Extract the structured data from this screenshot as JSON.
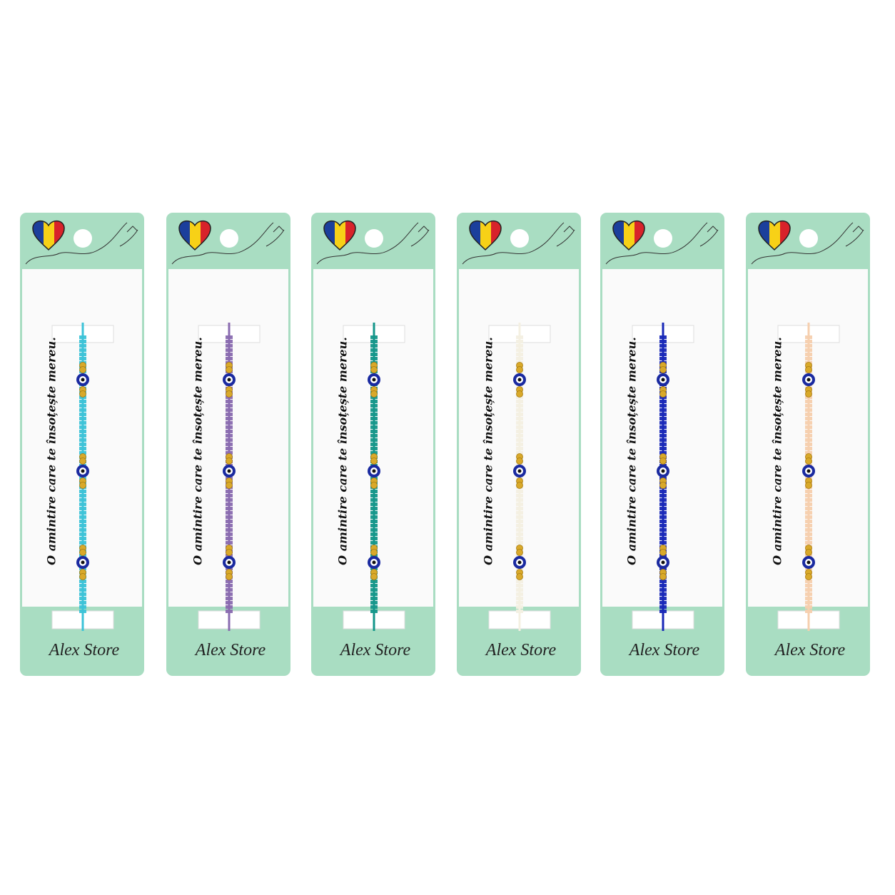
{
  "cards": [
    {
      "tagline": "O amintire care te însoțește mereu.",
      "brand": "Alex Store"
    },
    {
      "tagline": "O amintire care te însoțește mereu.",
      "brand": "Alex Store"
    },
    {
      "tagline": "O amintire care te însoțește mereu.",
      "brand": "Alex Store"
    },
    {
      "tagline": "O amintire care te însoțește mereu.",
      "brand": "Alex Store"
    },
    {
      "tagline": "O amintire care te însoțește mereu.",
      "brand": "Alex Store"
    },
    {
      "tagline": "O amintire care te însoțește mereu.",
      "brand": "Alex Store"
    }
  ]
}
